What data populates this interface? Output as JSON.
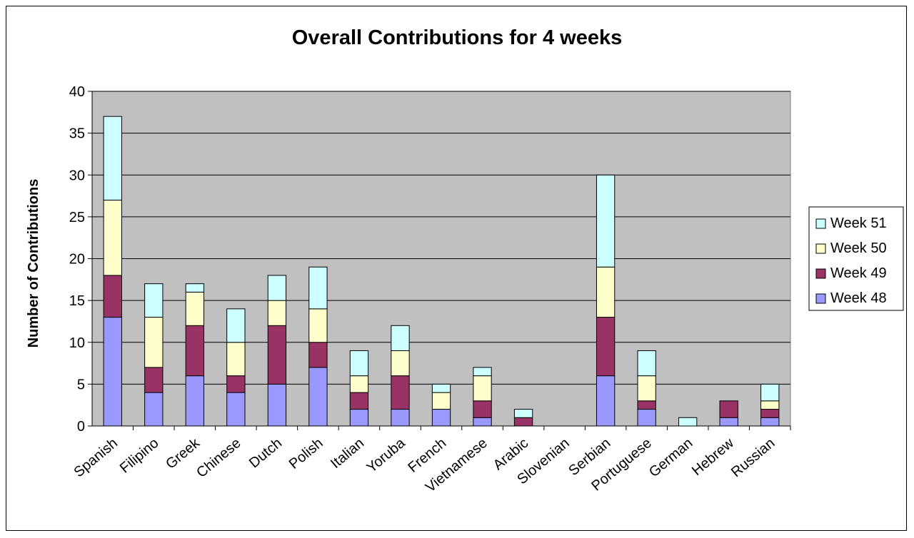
{
  "chart_data": {
    "type": "bar",
    "stacked": true,
    "title": "Overall Contributions for 4 weeks",
    "xlabel": "",
    "ylabel": "Number of Contributions",
    "ylim": [
      0,
      40
    ],
    "yticks": [
      0,
      5,
      10,
      15,
      20,
      25,
      30,
      35,
      40
    ],
    "grid": true,
    "legend_position": "right",
    "categories": [
      "Spanish",
      "Filipino",
      "Greek",
      "Chinese",
      "Dutch",
      "Polish",
      "Italian",
      "Yoruba",
      "French",
      "Vietnamese",
      "Arabic",
      "Slovenian",
      "Serbian",
      "Portuguese",
      "German",
      "Hebrew",
      "Russian"
    ],
    "series": [
      {
        "name": "Week 48",
        "color": "#9999ff",
        "values": [
          13,
          4,
          6,
          4,
          5,
          7,
          2,
          2,
          2,
          1,
          0,
          0,
          6,
          2,
          0,
          1,
          1
        ]
      },
      {
        "name": "Week 49",
        "color": "#993366",
        "values": [
          5,
          3,
          6,
          2,
          7,
          3,
          2,
          4,
          0,
          2,
          1,
          0,
          7,
          1,
          0,
          2,
          1
        ]
      },
      {
        "name": "Week 50",
        "color": "#ffffcc",
        "values": [
          9,
          6,
          4,
          4,
          3,
          4,
          2,
          3,
          2,
          3,
          0,
          0,
          6,
          3,
          0,
          0,
          1
        ]
      },
      {
        "name": "Week 51",
        "color": "#ccffff",
        "values": [
          10,
          4,
          1,
          4,
          3,
          5,
          3,
          3,
          1,
          1,
          1,
          0,
          11,
          3,
          1,
          0,
          2
        ]
      }
    ],
    "plot_background": "#c0c0c0"
  }
}
